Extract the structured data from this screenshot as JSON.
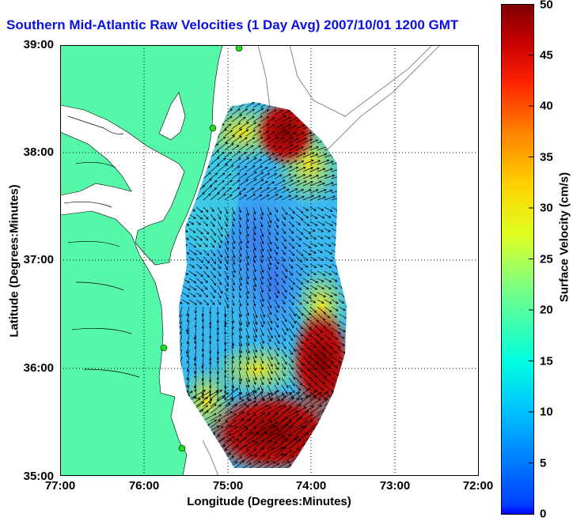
{
  "title": "Southern Mid-Atlantic Raw Velocities (1 Day Avg) 2007/10/01 1200 GMT",
  "map": {
    "type": "radar surface current map",
    "xlabel": "Longitude (Degrees:Minutes)",
    "ylabel": "Latitude (Degrees:Minutes)",
    "x_ticks": [
      "77:00",
      "76:00",
      "75:00",
      "74:00",
      "73:00",
      "72:00"
    ],
    "y_ticks": [
      "39:00",
      "38:00",
      "37:00",
      "36:00",
      "35:00"
    ],
    "xlim_west_deg": [
      77,
      72
    ],
    "ylim_north_deg": [
      35,
      39
    ],
    "grid": "dotted",
    "colors": {
      "land": "#55f8a8",
      "water": "#ffffff",
      "title": "#0a10e0",
      "station": "#22dd22"
    }
  },
  "colorbar": {
    "label": "Surface Velocity (cm/s)",
    "ticks": [
      "50",
      "45",
      "40",
      "35",
      "30",
      "25",
      "20",
      "15",
      "10",
      "5",
      "0"
    ],
    "range": [
      0,
      50
    ],
    "colormap": "jet"
  }
}
